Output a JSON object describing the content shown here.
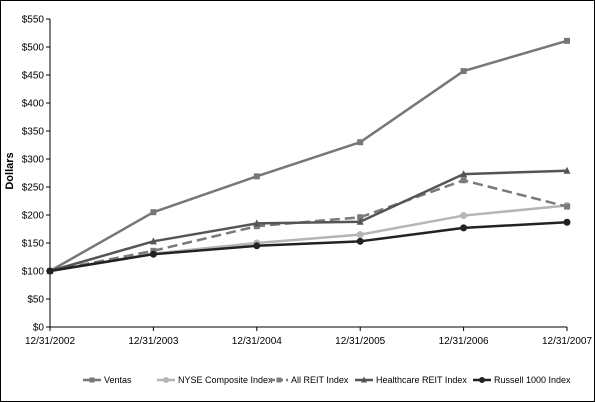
{
  "chart_data": {
    "type": "line",
    "ylabel": "Dollars",
    "xlabel": "",
    "ylim": [
      0,
      550
    ],
    "ytick_step": 50,
    "ytick_prefix": "$",
    "grid": false,
    "legend_position": "bottom",
    "x": [
      "12/31/2002",
      "12/31/2003",
      "12/31/2004",
      "12/31/2005",
      "12/31/2006",
      "12/31/2007"
    ],
    "series": [
      {
        "name": "Ventas",
        "values": [
          100,
          205,
          269,
          330,
          457,
          511
        ],
        "color": "#777777",
        "marker": "square",
        "dash": false
      },
      {
        "name": "NYSE Composite Index",
        "values": [
          100,
          131,
          150,
          165,
          199,
          217
        ],
        "color": "#b5b5b5",
        "marker": "circle",
        "dash": false
      },
      {
        "name": "All REIT Index",
        "values": [
          100,
          136,
          180,
          196,
          262,
          215
        ],
        "color": "#7a7a7a",
        "marker": "square",
        "dash": true
      },
      {
        "name": "Healthcare REIT Index",
        "values": [
          100,
          153,
          185,
          188,
          273,
          279
        ],
        "color": "#555555",
        "marker": "triangle",
        "dash": false
      },
      {
        "name": "Russell 1000 Index",
        "values": [
          100,
          130,
          145,
          153,
          177,
          187
        ],
        "color": "#222222",
        "marker": "circle",
        "dash": false
      }
    ]
  }
}
